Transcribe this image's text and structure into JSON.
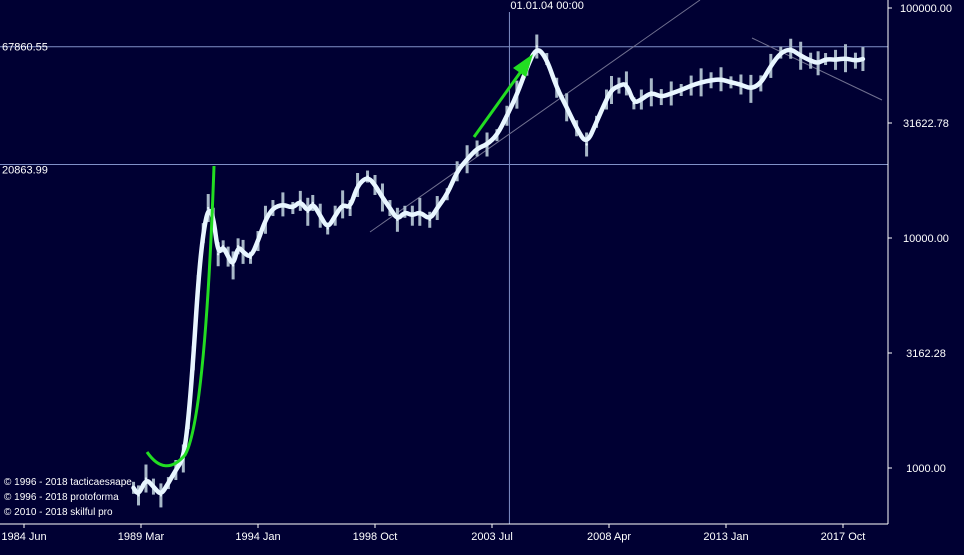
{
  "chart_data": {
    "type": "line",
    "title": "",
    "xlabel": "",
    "ylabel": "",
    "scale_y": "log",
    "colors": {
      "background": "#000033",
      "price_line": "#e8f6ff",
      "bars": "#a8b8c8",
      "crosshair": "#8090c8",
      "trendline": "#707090",
      "accent": "#22dd22",
      "axis": "#ffffff"
    },
    "x_ticks": [
      "1984 Jun",
      "1989 Mar",
      "1994 Jan",
      "1998 Oct",
      "2003 Jul",
      "2008 Apr",
      "2013 Jan",
      "2017 Oct"
    ],
    "y_ticks": [
      "100000.00",
      "31622.78",
      "10000.00",
      "3162.28",
      "1000.00"
    ],
    "y_tick_values": [
      100000,
      31622.78,
      10000,
      3162.28,
      1000
    ],
    "crosshair": {
      "x_label": "01.01.04 00:00",
      "price_high_label": "67860.55",
      "price_low_label": "20863.99",
      "price_high": 67860.55,
      "price_low": 20863.99
    },
    "series": [
      {
        "x": [
          1988.8,
          1989.0,
          1989.3,
          1989.6,
          1989.9,
          1990.2,
          1990.5,
          1990.8,
          1991.0,
          1991.2,
          1991.4,
          1991.6,
          1991.8,
          1992.0,
          1992.2,
          1992.4,
          1992.6,
          1992.8,
          1993.0,
          1993.2,
          1993.5,
          1993.8,
          1994.1,
          1994.4,
          1994.8,
          1995.2,
          1995.5,
          1995.8,
          1996.0,
          1996.3,
          1996.6,
          1996.9,
          1997.2,
          1997.5,
          1997.8,
          1998.2,
          1998.5,
          1998.8,
          1999.1,
          1999.4,
          1999.7,
          2000.0,
          2000.3,
          2000.7,
          2001.0,
          2001.4,
          2001.8,
          2002.2,
          2002.6,
          2003.0,
          2003.4,
          2003.8,
          2004.2,
          2004.6,
          2005.0,
          2005.4,
          2005.8,
          2006.2,
          2006.6,
          2007.0,
          2007.4,
          2007.8,
          2008.0,
          2008.3,
          2008.6,
          2008.9,
          2009.2,
          2009.6,
          2010.0,
          2010.4,
          2010.8,
          2011.2,
          2011.6,
          2012.0,
          2012.4,
          2012.8,
          2013.2,
          2013.6,
          2014.0,
          2014.4,
          2014.8,
          2015.2,
          2015.6,
          2016.0,
          2016.3,
          2016.6,
          2017.0,
          2017.4,
          2017.8,
          2018.1
        ],
        "values": [
          820,
          760,
          900,
          830,
          760,
          860,
          980,
          1100,
          1600,
          3000,
          6500,
          10500,
          13500,
          12500,
          8500,
          9200,
          8300,
          7600,
          9200,
          8700,
          8200,
          9700,
          12000,
          13500,
          14000,
          13500,
          14500,
          13000,
          14200,
          12500,
          11000,
          12500,
          14000,
          13500,
          17000,
          18500,
          17000,
          15000,
          13500,
          12000,
          13000,
          12500,
          13000,
          12000,
          13500,
          15500,
          19500,
          22000,
          24500,
          25500,
          28000,
          34000,
          42000,
          55000,
          68000,
          60000,
          45000,
          37000,
          30000,
          25500,
          32000,
          40000,
          44000,
          46000,
          47000,
          38500,
          40000,
          43000,
          41000,
          42500,
          44000,
          46000,
          47500,
          48500,
          49000,
          47500,
          46500,
          44500,
          47000,
          56000,
          64000,
          66500,
          62000,
          59000,
          57500,
          60000,
          59500,
          60500,
          59000,
          60000
        ]
      }
    ],
    "copyright": [
      "© 1996 - 2018 tacticaesяape",
      "© 1996 - 2018 protoforma",
      "© 2010 - 2018 skilful pro"
    ]
  }
}
